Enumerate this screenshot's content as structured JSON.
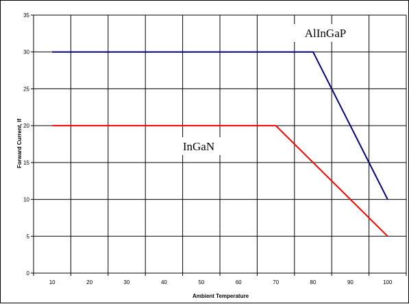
{
  "chart_data": {
    "type": "line",
    "title": "",
    "xlabel": "Ambient Temperature",
    "ylabel": "Forward Current, If",
    "xlim": [
      5,
      105
    ],
    "ylim": [
      0,
      35
    ],
    "x_ticks": [
      10,
      20,
      30,
      40,
      50,
      60,
      70,
      80,
      90,
      100
    ],
    "y_ticks": [
      0,
      5,
      10,
      15,
      20,
      25,
      30,
      35
    ],
    "grid": true,
    "legend": "none",
    "series": [
      {
        "name": "AlInGaP",
        "color": "#000080",
        "points": [
          [
            10,
            30
          ],
          [
            80,
            30
          ],
          [
            100,
            10
          ]
        ]
      },
      {
        "name": "InGaN",
        "color": "#ff0000",
        "points": [
          [
            10,
            20
          ],
          [
            70,
            20
          ],
          [
            100,
            5
          ]
        ]
      }
    ]
  }
}
